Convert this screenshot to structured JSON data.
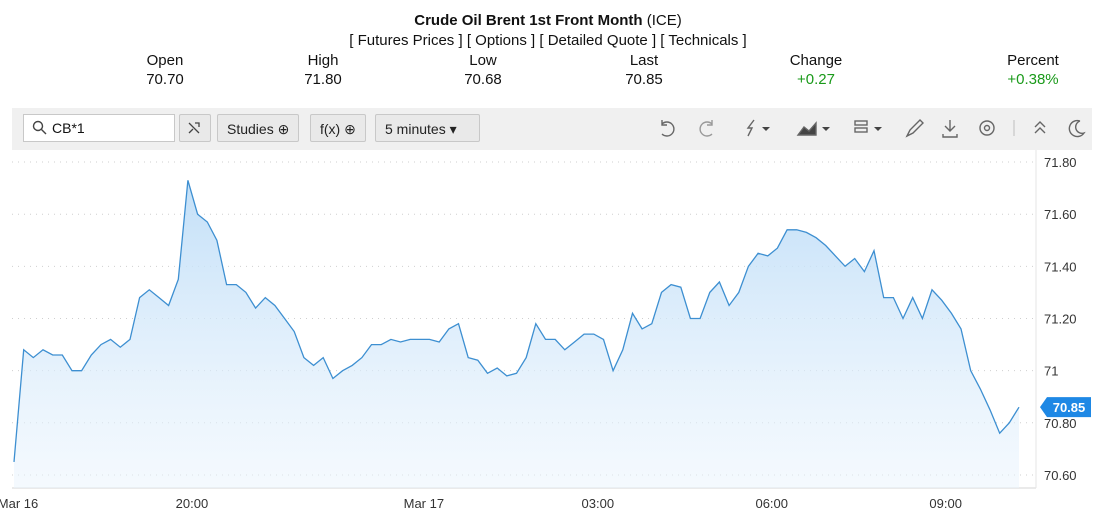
{
  "header": {
    "title": "Crude Oil Brent 1st Front Month",
    "exchange": "(ICE)",
    "links": [
      "[ Futures Prices ]",
      "[ Options ]",
      "[ Detailed Quote ]",
      "[ Technicals ]"
    ]
  },
  "quote": [
    {
      "label": "Open",
      "value": "70.70"
    },
    {
      "label": "High",
      "value": "71.80"
    },
    {
      "label": "Low",
      "value": "70.68"
    },
    {
      "label": "Last",
      "value": "70.85"
    },
    {
      "label": "Change",
      "value": "+0.27"
    },
    {
      "label": "Percent",
      "value": "+0.38%"
    }
  ],
  "toolbar": {
    "symbol": "CB*1",
    "studies": "Studies",
    "functions": "f(x)",
    "interval": "5 minutes"
  },
  "chart_data": {
    "type": "area",
    "color": "#3d8fd1",
    "grid": true,
    "categories": [
      "Mar 16",
      null,
      null,
      null,
      null,
      null,
      null,
      null,
      null,
      null,
      null,
      null,
      null,
      null,
      null,
      null,
      null,
      null,
      "20:00",
      null,
      null,
      null,
      null,
      null,
      null,
      null,
      null,
      null,
      null,
      null,
      null,
      null,
      null,
      null,
      null,
      null,
      null,
      null,
      null,
      null,
      null,
      null,
      "Mar 17",
      null,
      null,
      null,
      null,
      null,
      null,
      null,
      null,
      null,
      null,
      null,
      null,
      null,
      null,
      null,
      null,
      null,
      "03:00",
      null,
      null,
      null,
      null,
      null,
      null,
      null,
      null,
      null,
      null,
      null,
      null,
      null,
      null,
      null,
      null,
      null,
      "06:00",
      null,
      null,
      null,
      null,
      null,
      null,
      null,
      null,
      null,
      null,
      null,
      null,
      null,
      null,
      null,
      null,
      null,
      "09:00",
      null,
      null,
      null,
      null,
      null,
      null,
      null,
      null
    ],
    "values": [
      70.65,
      71.08,
      71.05,
      71.08,
      71.06,
      71.06,
      71.0,
      71.0,
      71.06,
      71.1,
      71.12,
      71.09,
      71.12,
      71.28,
      71.31,
      71.28,
      71.25,
      71.35,
      71.73,
      71.6,
      71.57,
      71.5,
      71.33,
      71.33,
      71.3,
      71.24,
      71.28,
      71.25,
      71.2,
      71.15,
      71.05,
      71.02,
      71.05,
      70.97,
      71.0,
      71.02,
      71.05,
      71.1,
      71.1,
      71.12,
      71.11,
      71.12,
      71.12,
      71.12,
      71.11,
      71.16,
      71.18,
      71.05,
      71.04,
      70.99,
      71.01,
      70.98,
      70.99,
      71.05,
      71.18,
      71.12,
      71.12,
      71.08,
      71.11,
      71.14,
      71.14,
      71.12,
      71.0,
      71.08,
      71.22,
      71.16,
      71.18,
      71.3,
      71.33,
      71.32,
      71.2,
      71.2,
      71.3,
      71.34,
      71.25,
      71.3,
      71.4,
      71.45,
      71.44,
      71.47,
      71.54,
      71.54,
      71.53,
      71.51,
      71.48,
      71.44,
      71.4,
      71.43,
      71.38,
      71.46,
      71.28,
      71.28,
      71.2,
      71.28,
      71.2,
      71.31,
      71.27,
      71.22,
      71.16,
      71.0,
      70.93,
      70.85,
      70.76,
      70.8,
      70.86
    ],
    "ylim": [
      70.55,
      71.85
    ],
    "yticks": [
      {
        "value": 70.6,
        "label": "70.60"
      },
      {
        "value": 70.8,
        "label": "70.80"
      },
      71,
      {
        "value": 71.2,
        "label": "71.20"
      },
      {
        "value": 71.4,
        "label": "71.40"
      },
      {
        "value": 71.6,
        "label": "71.60"
      },
      {
        "value": 71.8,
        "label": "71.80"
      }
    ]
  }
}
